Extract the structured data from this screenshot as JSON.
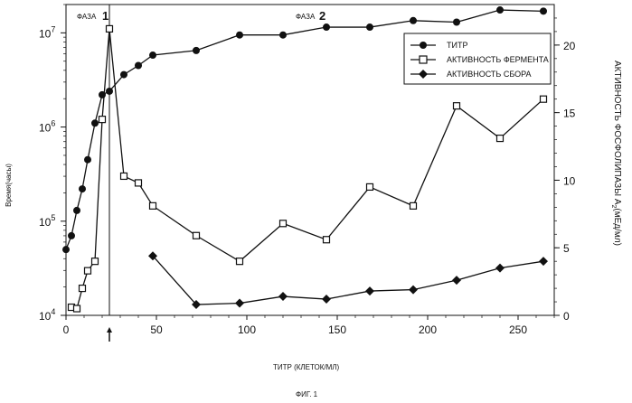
{
  "figure_caption": "ФИГ. 1",
  "chart_data": {
    "type": "line",
    "xlabel": "ТИТР (КЛЕТОК/МЛ)",
    "ylabel_left": "Время(часы)",
    "ylabel_right": "АКТИВНОСТЬ ФОСФОЛИПАЗЫ А",
    "ylabel_right_sub": "2",
    "ylabel_right_unit": "(мЕд/мл)",
    "xlim": [
      0,
      270
    ],
    "ylim_left": [
      10000,
      20000000
    ],
    "ylim_right": [
      0,
      23
    ],
    "y_left_scale": "log",
    "x_ticks": [
      "0",
      "50",
      "100",
      "150",
      "200",
      "250"
    ],
    "y_left_ticks": [
      {
        "base": "10",
        "exp": "4",
        "value": 10000
      },
      {
        "base": "10",
        "exp": "5",
        "value": 100000
      },
      {
        "base": "10",
        "exp": "6",
        "value": 1000000
      },
      {
        "base": "10",
        "exp": "7",
        "value": 10000000
      }
    ],
    "y_right_ticks": [
      "0",
      "5",
      "10",
      "15",
      "20"
    ],
    "phase_labels": [
      {
        "text": "ФАЗА",
        "num": "1",
        "x": 24
      },
      {
        "text": "ФАЗА",
        "num": "2",
        "x": 135
      }
    ],
    "phase_divider_x": 24,
    "legend_position": "top-right",
    "series": [
      {
        "name": "ТИТР",
        "axis": "left",
        "marker": "circle",
        "x": [
          0,
          3,
          6,
          9,
          12,
          16,
          20,
          24,
          32,
          40,
          48,
          72,
          96,
          120,
          144,
          168,
          192,
          216,
          240,
          264
        ],
        "y": [
          50000,
          70000,
          130000,
          220000,
          450000,
          1100000,
          2200000,
          2400000,
          3600000,
          4500000,
          5800000,
          6500000,
          9500000,
          9500000,
          11500000,
          11500000,
          13500000,
          13000000,
          17500000,
          17000000
        ]
      },
      {
        "name": "АКТИВНОСТЬ ФЕРМЕНТА",
        "axis": "right",
        "marker": "square",
        "x": [
          3,
          6,
          9,
          12,
          16,
          20,
          24,
          32,
          40,
          48,
          72,
          96,
          120,
          144,
          168,
          192,
          216,
          240,
          264
        ],
        "y": [
          0.6,
          0.5,
          2.0,
          3.3,
          4.0,
          14.5,
          21.2,
          10.3,
          9.8,
          8.1,
          5.9,
          4.0,
          6.8,
          5.6,
          9.5,
          8.1,
          15.5,
          13.1,
          16.0
        ]
      },
      {
        "name": "АКТИВНОСТЬ СБОРА",
        "axis": "right",
        "marker": "diamond",
        "x": [
          48,
          72,
          96,
          120,
          144,
          168,
          192,
          216,
          240,
          264
        ],
        "y": [
          4.4,
          0.8,
          0.9,
          1.4,
          1.2,
          1.8,
          1.9,
          2.6,
          3.5,
          4.0
        ]
      }
    ]
  }
}
